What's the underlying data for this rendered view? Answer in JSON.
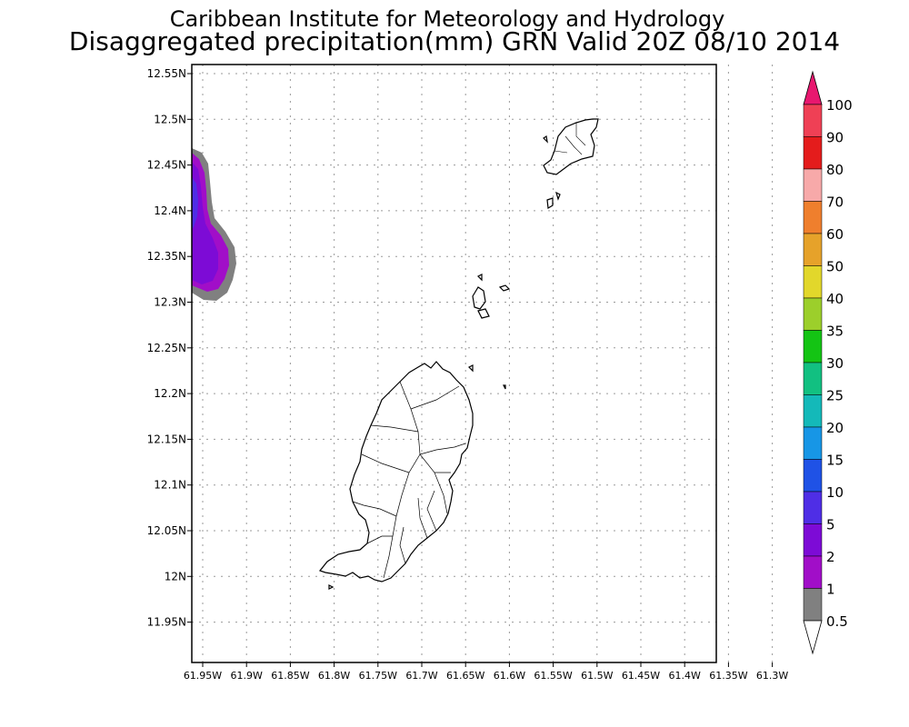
{
  "title": {
    "line1": "Caribbean Institute for Meteorology and Hydrology",
    "line2": "Disaggregated precipitation(mm) GRN Valid 20Z 08/10 2014"
  },
  "lat_ticks": [
    "12.55N",
    "12.5N",
    "12.45N",
    "12.4N",
    "12.35N",
    "12.3N",
    "12.25N",
    "12.2N",
    "12.15N",
    "12.1N",
    "12.05N",
    "12N",
    "11.95N"
  ],
  "lon_ticks": [
    "61.95W",
    "61.9W",
    "61.85W",
    "61.8W",
    "61.75W",
    "61.7W",
    "61.65W",
    "61.6W",
    "61.55W",
    "61.5W",
    "61.45W",
    "61.4W",
    "61.35W",
    "61.3W"
  ],
  "colorbar": {
    "labels": [
      "100",
      "90",
      "80",
      "70",
      "60",
      "50",
      "40",
      "35",
      "30",
      "25",
      "20",
      "15",
      "10",
      "5",
      "2",
      "1",
      "0.5"
    ],
    "colors": [
      "#e8176f",
      "#ef4055",
      "#e41c1c",
      "#f7a9a9",
      "#ef7f2d",
      "#e6a22a",
      "#e2d72b",
      "#9ccf2b",
      "#14c414",
      "#12c081",
      "#14b9b9",
      "#1796e6",
      "#1f52e6",
      "#4f2ee6",
      "#7d0bd6",
      "#a10ec8",
      "#808080",
      "#ffffff"
    ]
  },
  "precip_blob": {
    "colors": {
      "outer": "#808080",
      "mid": "#a10ec8",
      "inner": "#7d0bd6",
      "core": "#4f2ee6"
    }
  }
}
